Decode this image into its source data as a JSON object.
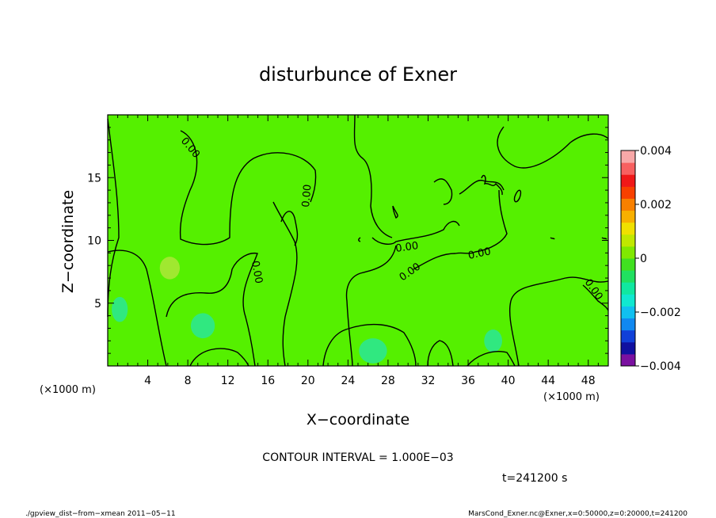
{
  "chart_data": {
    "type": "heatmap",
    "title": "disturbunce of Exner",
    "xlabel": "X−coordinate",
    "ylabel": "Z−coordinate",
    "x_unit": "(×1000 m)",
    "y_unit": "(×1000 m)",
    "x_ticks": [
      4,
      8,
      12,
      16,
      20,
      24,
      28,
      32,
      36,
      40,
      44,
      48
    ],
    "y_ticks": [
      5,
      10,
      15
    ],
    "xlim": [
      0,
      50
    ],
    "ylim": [
      0,
      20
    ],
    "contour_label": "0.00",
    "contour_interval_text": "CONTOUR INTERVAL = 1.000E−03",
    "time_text": "t=241200 s",
    "colorbar": {
      "min": -0.004,
      "max": 0.004,
      "tick_labels": [
        "0.004",
        "0.002",
        "0",
        "−0.002",
        "−0.004"
      ],
      "tick_values": [
        0.004,
        0.002,
        0,
        -0.002,
        -0.004
      ],
      "colors": [
        "#7a10a0",
        "#1010a0",
        "#1040d8",
        "#1088f0",
        "#10c0f0",
        "#10e8d0",
        "#10e8a0",
        "#20e060",
        "#40e020",
        "#80e800",
        "#c0e800",
        "#f0e000",
        "#f8b000",
        "#f88000",
        "#f84000",
        "#f01818",
        "#f86060",
        "#f8a8a8"
      ]
    },
    "field_color": "#55f000",
    "cells": [
      {
        "x": 1.2,
        "z": 4.5,
        "rx": 0.8,
        "rz": 1.0,
        "color": "#30e880"
      },
      {
        "x": 6.2,
        "z": 7.8,
        "rx": 1.0,
        "rz": 0.9,
        "color": "#a0e830"
      },
      {
        "x": 9.5,
        "z": 3.2,
        "rx": 1.2,
        "rz": 1.0,
        "color": "#30e880"
      },
      {
        "x": 26.5,
        "z": 1.2,
        "rx": 1.4,
        "rz": 1.0,
        "color": "#30e880"
      },
      {
        "x": 38.5,
        "z": 2.0,
        "rx": 0.9,
        "rz": 0.9,
        "color": "#30e880"
      }
    ],
    "footer_left": "./gpview_dist−from−xmean   2011−05−11",
    "footer_right": "MarsCond_Exner.nc@Exner,x=0:50000,z=0:20000,t=241200"
  }
}
